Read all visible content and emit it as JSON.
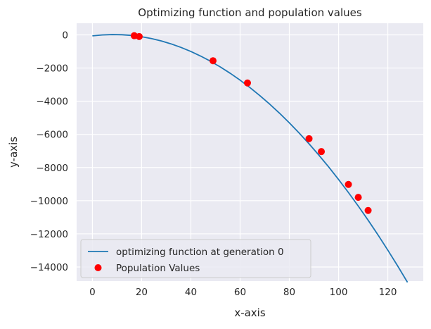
{
  "chart_data": {
    "type": "scatter",
    "title": "Optimizing function and population values",
    "xlabel": "x-axis",
    "ylabel": "y-axis",
    "xlim": [
      -6.4,
      134.4
    ],
    "ylim": [
      -14850,
      700
    ],
    "xticks": [
      0,
      20,
      40,
      60,
      80,
      100,
      120
    ],
    "yticks": [
      0,
      -2000,
      -4000,
      -6000,
      -8000,
      -10000,
      -12000,
      -14000
    ],
    "xtick_labels": [
      "0",
      "20",
      "40",
      "60",
      "80",
      "100",
      "120"
    ],
    "ytick_labels": [
      "0",
      "−2000",
      "−4000",
      "−6000",
      "−8000",
      "−10000",
      "−12000",
      "−14000"
    ],
    "grid": true,
    "legend_position": "lower-left",
    "series": [
      {
        "name": "optimizing function at generation 0",
        "kind": "line",
        "color": "#1f77b4",
        "x": [
          0,
          4,
          8,
          12,
          16,
          20,
          24,
          28,
          32,
          36,
          40,
          44,
          48,
          52,
          56,
          60,
          64,
          68,
          72,
          76,
          80,
          84,
          88,
          92,
          96,
          100,
          104,
          108,
          112,
          116,
          120,
          124,
          128
        ],
        "y": [
          -60,
          -6,
          17,
          7,
          -36,
          -114,
          -224,
          -368,
          -546,
          -757,
          -1002,
          -1281,
          -1593,
          -1939,
          -2319,
          -2733,
          -3180,
          -3661,
          -4175,
          -4724,
          -5306,
          -5922,
          -6571,
          -7255,
          -7972,
          -8723,
          -9507,
          -10326,
          -11178,
          -12064,
          -12983,
          -13937,
          -14924
        ]
      },
      {
        "name": "Population Values",
        "kind": "scatter",
        "color": "#ff0000",
        "x": [
          17,
          19,
          49,
          63,
          88,
          93,
          104,
          108,
          112
        ],
        "y": [
          -50,
          -100,
          -1560,
          -2900,
          -6260,
          -7040,
          -9020,
          -9800,
          -10590
        ]
      }
    ]
  }
}
